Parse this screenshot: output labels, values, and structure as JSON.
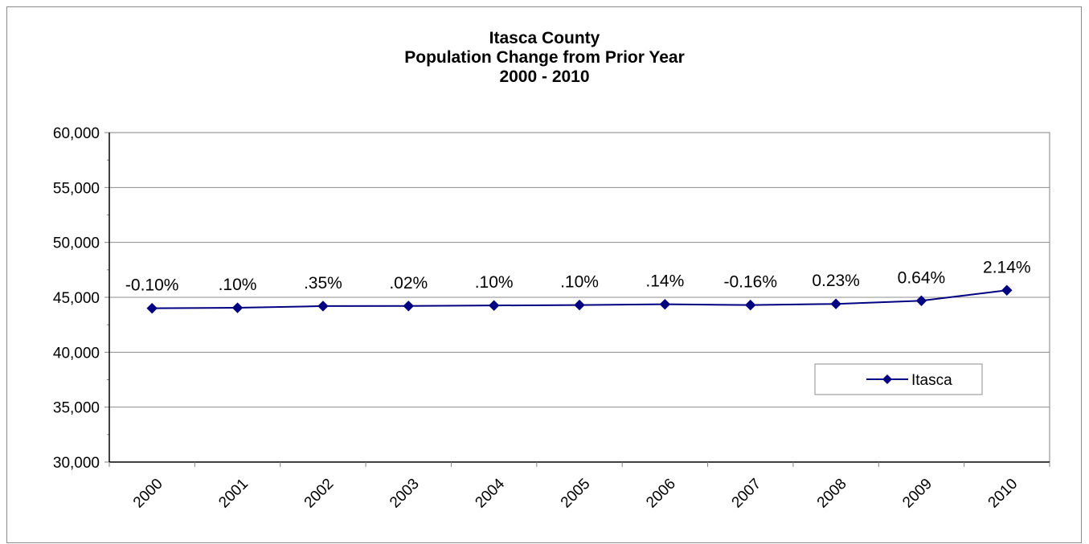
{
  "chart_data": {
    "type": "line",
    "title": [
      "Itasca County",
      "Population Change from Prior Year",
      "2000 - 2010"
    ],
    "xlabel": "",
    "ylabel": "",
    "categories": [
      "2000",
      "2001",
      "2002",
      "2003",
      "2004",
      "2005",
      "2006",
      "2007",
      "2008",
      "2009",
      "2010"
    ],
    "series": [
      {
        "name": "Itasca",
        "values": [
          44000,
          44045,
          44200,
          44210,
          44255,
          44300,
          44365,
          44295,
          44400,
          44685,
          45640
        ],
        "labels": [
          "-0.10%",
          ".10%",
          ".35%",
          ".02%",
          ".10%",
          ".10%",
          ".14%",
          "-0.16%",
          "0.23%",
          "0.64%",
          "2.14%"
        ],
        "color": "#000080"
      }
    ],
    "ylim": [
      30000,
      60000
    ],
    "yticks": [
      30000,
      35000,
      40000,
      45000,
      50000,
      55000,
      60000
    ],
    "ytick_labels": [
      "30,000",
      "35,000",
      "40,000",
      "45,000",
      "50,000",
      "55,000",
      "60,000"
    ],
    "grid": true,
    "legend_position": "lower-right"
  }
}
